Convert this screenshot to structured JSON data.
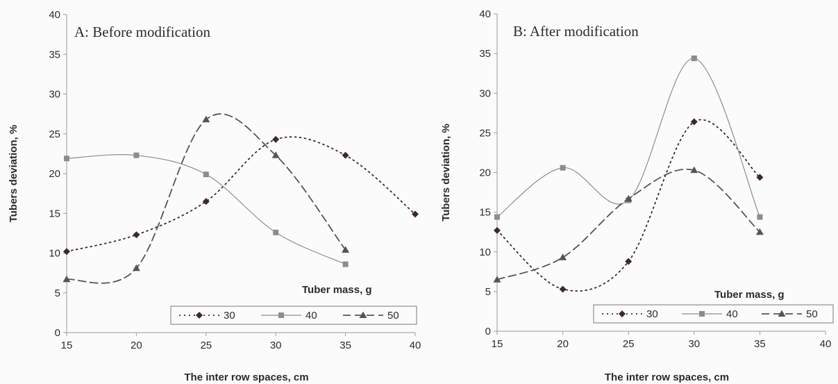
{
  "chart_data": [
    {
      "type": "line",
      "title": "A: Before modification",
      "xlabel": "The inter row spaces, cm",
      "ylabel": "Tubers deviation, %",
      "xlim": [
        15,
        40
      ],
      "ylim": [
        0,
        40
      ],
      "x_ticks": [
        "15",
        "20",
        "25",
        "30",
        "35",
        "40"
      ],
      "y_ticks": [
        "0",
        "5",
        "10",
        "15",
        "20",
        "25",
        "30",
        "35",
        "40"
      ],
      "grid": false,
      "legend_title": "Tuber mass, g",
      "legend_position": "bottom-right",
      "series": [
        {
          "name": "30",
          "color": "#3a2a2a",
          "marker": "diamond",
          "style": "dotted",
          "x": [
            15,
            20,
            25,
            30,
            35,
            40
          ],
          "y": [
            10.2,
            12.3,
            16.5,
            24.3,
            22.3,
            14.9
          ]
        },
        {
          "name": "40",
          "color": "#8c8c8c",
          "marker": "square",
          "style": "solid",
          "x": [
            15,
            20,
            25,
            30,
            35
          ],
          "y": [
            21.9,
            22.3,
            19.9,
            12.6,
            8.6
          ]
        },
        {
          "name": "50",
          "color": "#555555",
          "marker": "triangle",
          "style": "dashed",
          "x": [
            15,
            20,
            25,
            30,
            35
          ],
          "y": [
            6.7,
            8.1,
            26.8,
            22.3,
            10.4
          ]
        }
      ]
    },
    {
      "type": "line",
      "title": "B: After modification",
      "xlabel": "The inter row spaces, cm",
      "ylabel": "Tubers deviation, %",
      "xlim": [
        15,
        40
      ],
      "ylim": [
        0,
        40
      ],
      "x_ticks": [
        "15",
        "20",
        "25",
        "30",
        "35",
        "40"
      ],
      "y_ticks": [
        "0",
        "5",
        "10",
        "15",
        "20",
        "25",
        "30",
        "35",
        "40"
      ],
      "grid": false,
      "legend_title": "Tuber mass, g",
      "legend_position": "bottom-right",
      "series": [
        {
          "name": "30",
          "color": "#3a2a2a",
          "marker": "diamond",
          "style": "dotted",
          "x": [
            15,
            20,
            25,
            30,
            35
          ],
          "y": [
            12.7,
            5.3,
            8.8,
            26.4,
            19.4
          ]
        },
        {
          "name": "40",
          "color": "#8c8c8c",
          "marker": "square",
          "style": "solid",
          "x": [
            15,
            20,
            25,
            30,
            35
          ],
          "y": [
            14.4,
            20.6,
            16.5,
            34.4,
            14.4
          ]
        },
        {
          "name": "50",
          "color": "#555555",
          "marker": "triangle",
          "style": "dashed",
          "x": [
            15,
            20,
            25,
            30,
            35
          ],
          "y": [
            6.5,
            9.3,
            16.7,
            20.3,
            12.5
          ]
        }
      ]
    }
  ]
}
